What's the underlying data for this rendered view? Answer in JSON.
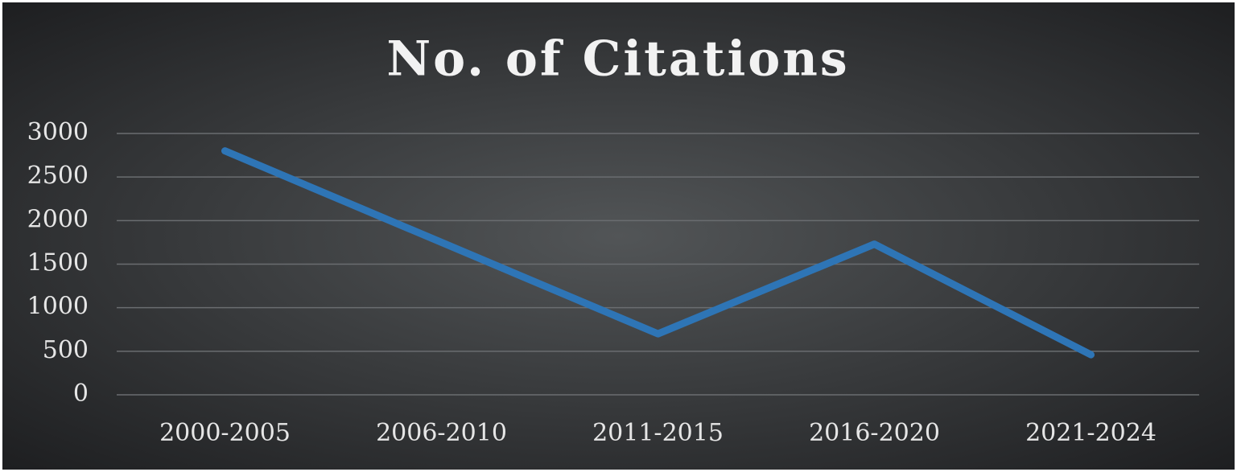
{
  "chart_data": {
    "type": "line",
    "title": "No. of Citations",
    "categories": [
      "2000-2005",
      "2006-2010",
      "2011-2015",
      "2016-2020",
      "2021-2024"
    ],
    "series": [
      {
        "name": "No. of Citations",
        "color": "#2e75b6",
        "values": [
          2800,
          1750,
          700,
          1730,
          460
        ]
      }
    ],
    "ylim": [
      0,
      3000
    ],
    "yticks": [
      0,
      500,
      1000,
      1500,
      2000,
      2500,
      3000
    ],
    "grid": true
  }
}
